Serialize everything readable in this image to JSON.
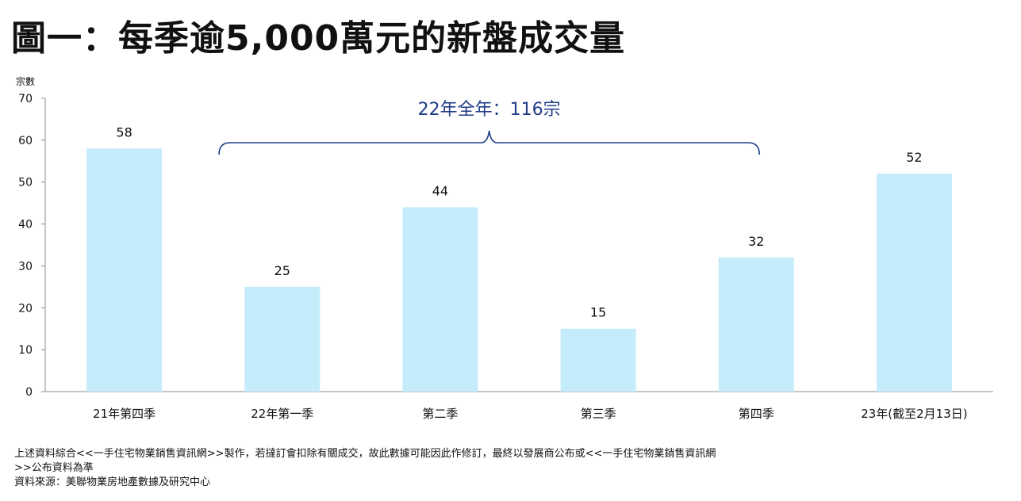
{
  "page": {
    "title": "圖一：每季逾5,000萬元的新盤成交量"
  },
  "chart_data": {
    "type": "bar",
    "title": "圖一：每季逾5,000萬元的新盤成交量",
    "ylabel": "宗數",
    "xlabel": "",
    "ylim": [
      0,
      70
    ],
    "yticks": [
      0,
      10,
      20,
      30,
      40,
      50,
      60,
      70
    ],
    "categories": [
      "21年第四季",
      "22年第一季",
      "第二季",
      "第三季",
      "第四季",
      "23年(截至2月13日)"
    ],
    "values": [
      58,
      25,
      44,
      15,
      32,
      52
    ],
    "bar_color": "#c5ecfb",
    "annotation": {
      "text": "22年全年：116宗",
      "color": "#1f3c88",
      "span_categories": [
        "22年第一季",
        "第四季"
      ]
    },
    "grid": false
  },
  "footer": {
    "line1": "上述資料綜合<<一手住宅物業銷售資訊網>>製作，若撻訂會扣除有關成交，故此數據可能因此作修訂，最終以發展商公布或<<一手住宅物業銷售資訊網",
    "line2": ">>公布資料為準",
    "line3": "資料來源：美聯物業房地產數據及研究中心"
  }
}
